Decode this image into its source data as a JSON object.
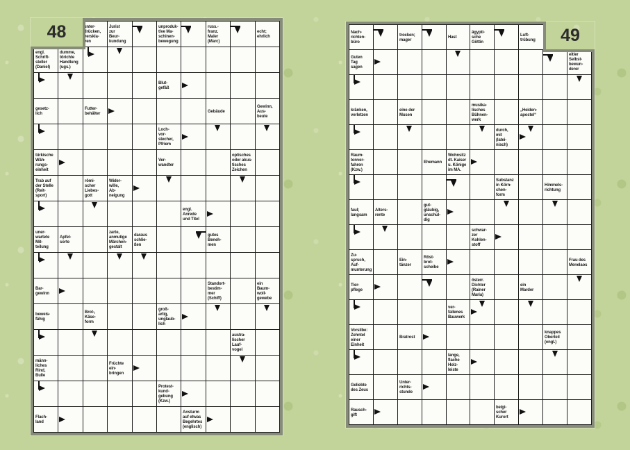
{
  "colors": {
    "background": "#c3d49a",
    "frame": "#878c7a",
    "cell": "#fcfcf9",
    "line": "#1b1b1b",
    "text": "#151515"
  },
  "pages": [
    {
      "number": "48",
      "grid": {
        "rows": 16,
        "cols": 10
      },
      "void_cells": [
        {
          "r": 1,
          "c": 1
        },
        {
          "r": 1,
          "c": 2
        }
      ],
      "clues": [
        {
          "r": 1,
          "c": 3,
          "t": "unter-\ndrücken,\nverskla-\nven"
        },
        {
          "r": 1,
          "c": 4,
          "t": "Jurist\nzur\nBeur-\nkundung"
        },
        {
          "r": 1,
          "c": 6,
          "t": "unproduk-\ntive Ma-\nschinen-\nbewegung"
        },
        {
          "r": 1,
          "c": 8,
          "t": "russ.-\nfranz.\nMaler\n(Marc)"
        },
        {
          "r": 1,
          "c": 10,
          "t": "echt;\nehrlich"
        },
        {
          "r": 2,
          "c": 1,
          "t": "engl.\nSchrift-\nsteller\n(Daniel)"
        },
        {
          "r": 2,
          "c": 2,
          "t": "dumme,\ntörichte\nHandlung\n(ugs.)"
        },
        {
          "r": 3,
          "c": 6,
          "t": "Blut-\ngefäß"
        },
        {
          "r": 4,
          "c": 1,
          "t": "gesetz-\nlich"
        },
        {
          "r": 4,
          "c": 3,
          "t": "Futter-\nbehälter"
        },
        {
          "r": 4,
          "c": 8,
          "t": "Gebäude"
        },
        {
          "r": 4,
          "c": 10,
          "t": "Gewinn,\nAus-\nbeute"
        },
        {
          "r": 5,
          "c": 6,
          "t": "Loch-\nvor-\nstecher,\nPfriem"
        },
        {
          "r": 6,
          "c": 1,
          "t": "türkische\nWäh-\nrungs-\neinheit"
        },
        {
          "r": 6,
          "c": 6,
          "t": "Ver-\nwandter"
        },
        {
          "r": 6,
          "c": 9,
          "t": "optisches\noder akus-\ntisches\nZeichen"
        },
        {
          "r": 7,
          "c": 1,
          "t": "Trab auf\nder Stelle\n(Reit-\nsport)"
        },
        {
          "r": 7,
          "c": 3,
          "t": "römi-\nscher\nLiebes-\ngott"
        },
        {
          "r": 7,
          "c": 4,
          "t": "Wider-\nwille,\nAb-\nneigung"
        },
        {
          "r": 8,
          "c": 7,
          "t": "engl.\nAnrede\nund Titel"
        },
        {
          "r": 9,
          "c": 1,
          "t": "uner-\nwartete\nMit-\nteilung"
        },
        {
          "r": 9,
          "c": 2,
          "t": "Apfel-\nsorte"
        },
        {
          "r": 9,
          "c": 4,
          "t": "zarte,\nanmutige\nMärchen-\ngestalt"
        },
        {
          "r": 9,
          "c": 5,
          "t": "daraus\nschlie-\nßen"
        },
        {
          "r": 9,
          "c": 8,
          "t": "gutes\nBeneh-\nmen"
        },
        {
          "r": 11,
          "c": 1,
          "t": "Bar-\ngewinn"
        },
        {
          "r": 11,
          "c": 8,
          "t": "Standort-\nbestim-\nmer\n(Schiff)"
        },
        {
          "r": 11,
          "c": 10,
          "t": "ein\nBaum-\nwoll-\ngewebe"
        },
        {
          "r": 12,
          "c": 1,
          "t": "beweis-\nfähig"
        },
        {
          "r": 12,
          "c": 3,
          "t": "Brot-,\nKäse-\nform"
        },
        {
          "r": 12,
          "c": 6,
          "t": "groß-\nartig,\nunglaub-\nlich"
        },
        {
          "r": 13,
          "c": 9,
          "t": "austra-\nlischer\nLauf-\nvogel"
        },
        {
          "r": 14,
          "c": 1,
          "t": "männ-\nliches\nRind,\nBulle"
        },
        {
          "r": 14,
          "c": 4,
          "t": "Früchte\nein-\nbringen"
        },
        {
          "r": 15,
          "c": 6,
          "t": "Protest-\nkund-\ngebung\n(Kzw.)"
        },
        {
          "r": 16,
          "c": 1,
          "t": "Flach-\nland"
        },
        {
          "r": 16,
          "c": 7,
          "t": "Ansturm\nauf etwas\nBegehrtes\n(englisch)"
        }
      ],
      "arrows": [
        {
          "r": 1,
          "c": 5,
          "a": "ld"
        },
        {
          "r": 1,
          "c": 7,
          "a": "ld"
        },
        {
          "r": 1,
          "c": 9,
          "a": "ld"
        },
        {
          "r": 2,
          "c": 3,
          "a": "tr"
        },
        {
          "r": 2,
          "c": 4,
          "a": "d"
        },
        {
          "r": 3,
          "c": 1,
          "a": "tr"
        },
        {
          "r": 3,
          "c": 2,
          "a": "d"
        },
        {
          "r": 3,
          "c": 7,
          "a": "r"
        },
        {
          "r": 4,
          "c": 4,
          "a": "r"
        },
        {
          "r": 5,
          "c": 1,
          "a": "tr"
        },
        {
          "r": 5,
          "c": 7,
          "a": "r"
        },
        {
          "r": 5,
          "c": 8,
          "a": "d"
        },
        {
          "r": 5,
          "c": 10,
          "a": "d"
        },
        {
          "r": 6,
          "c": 2,
          "a": "r"
        },
        {
          "r": 7,
          "c": 5,
          "a": "r"
        },
        {
          "r": 7,
          "c": 6,
          "a": "d"
        },
        {
          "r": 7,
          "c": 9,
          "a": "d"
        },
        {
          "r": 8,
          "c": 1,
          "a": "tr"
        },
        {
          "r": 8,
          "c": 3,
          "a": "d"
        },
        {
          "r": 8,
          "c": 8,
          "a": "r"
        },
        {
          "r": 9,
          "c": 7,
          "a": "rd"
        },
        {
          "r": 10,
          "c": 1,
          "a": "tr"
        },
        {
          "r": 10,
          "c": 2,
          "a": "d"
        },
        {
          "r": 10,
          "c": 4,
          "a": "d"
        },
        {
          "r": 10,
          "c": 5,
          "a": "d"
        },
        {
          "r": 11,
          "c": 2,
          "a": "r"
        },
        {
          "r": 12,
          "c": 7,
          "a": "r"
        },
        {
          "r": 12,
          "c": 8,
          "a": "d"
        },
        {
          "r": 12,
          "c": 10,
          "a": "d"
        },
        {
          "r": 13,
          "c": 1,
          "a": "tr"
        },
        {
          "r": 13,
          "c": 3,
          "a": "d"
        },
        {
          "r": 14,
          "c": 5,
          "a": "r"
        },
        {
          "r": 14,
          "c": 9,
          "a": "d"
        },
        {
          "r": 15,
          "c": 1,
          "a": "tr"
        },
        {
          "r": 15,
          "c": 7,
          "a": "r"
        },
        {
          "r": 16,
          "c": 2,
          "a": "r"
        },
        {
          "r": 16,
          "c": 8,
          "a": "r"
        }
      ]
    },
    {
      "number": "49",
      "grid": {
        "rows": 16,
        "cols": 10
      },
      "void_cells": [
        {
          "r": 1,
          "c": 9
        },
        {
          "r": 1,
          "c": 10
        }
      ],
      "clues": [
        {
          "r": 1,
          "c": 1,
          "t": "Nach-\nrichten-\nbüro"
        },
        {
          "r": 1,
          "c": 3,
          "t": "trocken;\nmager"
        },
        {
          "r": 1,
          "c": 5,
          "t": "Hast"
        },
        {
          "r": 1,
          "c": 6,
          "t": "ägypti-\nsche\nGöttin"
        },
        {
          "r": 1,
          "c": 8,
          "t": "Luft-\ntrübung"
        },
        {
          "r": 2,
          "c": 1,
          "t": "Guten\nTag\nsagen"
        },
        {
          "r": 2,
          "c": 10,
          "t": "eitler\nSelbst-\nbewun-\nderer"
        },
        {
          "r": 4,
          "c": 1,
          "t": "kränken,\nverletzen"
        },
        {
          "r": 4,
          "c": 3,
          "t": "eine der\nMusen"
        },
        {
          "r": 4,
          "c": 6,
          "t": "musika-\nlisches\nBühnen-\nwerk"
        },
        {
          "r": 4,
          "c": 8,
          "t": "„Heiden-\napostel“"
        },
        {
          "r": 5,
          "c": 7,
          "t": "durch,\nmit\n(latei-\nnisch)"
        },
        {
          "r": 6,
          "c": 1,
          "t": "Raum-\ntonver-\nfahren\n(Kzw.)"
        },
        {
          "r": 6,
          "c": 4,
          "t": "Ehemann"
        },
        {
          "r": 6,
          "c": 5,
          "t": "Wohnsitz\ndt. Kaiser\nu. Könige\nim MA."
        },
        {
          "r": 7,
          "c": 7,
          "t": "Substanz\nin Körn-\nchen-\nform"
        },
        {
          "r": 7,
          "c": 9,
          "t": "Himmels-\nrichtung"
        },
        {
          "r": 8,
          "c": 1,
          "t": "faul;\nlangsam"
        },
        {
          "r": 8,
          "c": 2,
          "t": "Alters-\nrente"
        },
        {
          "r": 8,
          "c": 4,
          "t": "gut-\ngläubig,\nunschul-\ndig"
        },
        {
          "r": 9,
          "c": 6,
          "t": "schwar-\nzer\nKohlen-\nstoff"
        },
        {
          "r": 10,
          "c": 1,
          "t": "Zu-\nspruch,\nAuf-\nmunterung"
        },
        {
          "r": 10,
          "c": 3,
          "t": "Ein-\ntänzer"
        },
        {
          "r": 10,
          "c": 4,
          "t": "Röst-\nbrot-\nscheibe"
        },
        {
          "r": 10,
          "c": 10,
          "t": "Frau des\nMenelaos"
        },
        {
          "r": 11,
          "c": 1,
          "t": "Tier-\npflege"
        },
        {
          "r": 11,
          "c": 6,
          "t": "österr.\nDichter\n(Rainer\nMaria)"
        },
        {
          "r": 11,
          "c": 8,
          "t": "ein\nMarder"
        },
        {
          "r": 12,
          "c": 5,
          "t": "ver-\nfallenes\nBauwerk"
        },
        {
          "r": 13,
          "c": 1,
          "t": "Vorsilbe:\nZehntel\neiner\nEinheit"
        },
        {
          "r": 13,
          "c": 3,
          "t": "Bratrost"
        },
        {
          "r": 13,
          "c": 9,
          "t": "knappes\nOberteil\n(engl.)"
        },
        {
          "r": 14,
          "c": 5,
          "t": "lange,\nflache\nHolz-\nleiste"
        },
        {
          "r": 15,
          "c": 1,
          "t": "Geliebte\ndes Zeus"
        },
        {
          "r": 15,
          "c": 3,
          "t": "Unter-\nrichts-\nstunde"
        },
        {
          "r": 16,
          "c": 1,
          "t": "Rausch-\ngift"
        },
        {
          "r": 16,
          "c": 7,
          "t": "belgi-\nscher\nKurort"
        }
      ],
      "arrows": [
        {
          "r": 1,
          "c": 2,
          "a": "ld"
        },
        {
          "r": 1,
          "c": 4,
          "a": "ld"
        },
        {
          "r": 1,
          "c": 7,
          "a": "ld"
        },
        {
          "r": 2,
          "c": 2,
          "a": "r"
        },
        {
          "r": 2,
          "c": 5,
          "a": "d"
        },
        {
          "r": 2,
          "c": 9,
          "a": "ld"
        },
        {
          "r": 3,
          "c": 1,
          "a": "tr"
        },
        {
          "r": 3,
          "c": 10,
          "a": "d"
        },
        {
          "r": 5,
          "c": 1,
          "a": "tr"
        },
        {
          "r": 5,
          "c": 3,
          "a": "d"
        },
        {
          "r": 5,
          "c": 6,
          "a": "d"
        },
        {
          "r": 5,
          "c": 8,
          "a": "d r"
        },
        {
          "r": 6,
          "c": 6,
          "a": "r"
        },
        {
          "r": 7,
          "c": 1,
          "a": "tr"
        },
        {
          "r": 7,
          "c": 5,
          "a": "ld"
        },
        {
          "r": 8,
          "c": 5,
          "a": "r"
        },
        {
          "r": 8,
          "c": 7,
          "a": "d"
        },
        {
          "r": 8,
          "c": 9,
          "a": "d"
        },
        {
          "r": 9,
          "c": 1,
          "a": "tr"
        },
        {
          "r": 9,
          "c": 2,
          "a": "d"
        },
        {
          "r": 9,
          "c": 7,
          "a": "r"
        },
        {
          "r": 10,
          "c": 5,
          "a": "r"
        },
        {
          "r": 11,
          "c": 2,
          "a": "r"
        },
        {
          "r": 11,
          "c": 4,
          "a": "ld"
        },
        {
          "r": 11,
          "c": 10,
          "a": "d"
        },
        {
          "r": 12,
          "c": 1,
          "a": "tr"
        },
        {
          "r": 12,
          "c": 6,
          "a": "d r"
        },
        {
          "r": 12,
          "c": 8,
          "a": "d"
        },
        {
          "r": 13,
          "c": 4,
          "a": "r"
        },
        {
          "r": 14,
          "c": 1,
          "a": "tr"
        },
        {
          "r": 14,
          "c": 6,
          "a": "r"
        },
        {
          "r": 14,
          "c": 9,
          "a": "d"
        },
        {
          "r": 15,
          "c": 4,
          "a": "r"
        },
        {
          "r": 16,
          "c": 2,
          "a": "r"
        },
        {
          "r": 16,
          "c": 8,
          "a": "r"
        }
      ]
    }
  ]
}
